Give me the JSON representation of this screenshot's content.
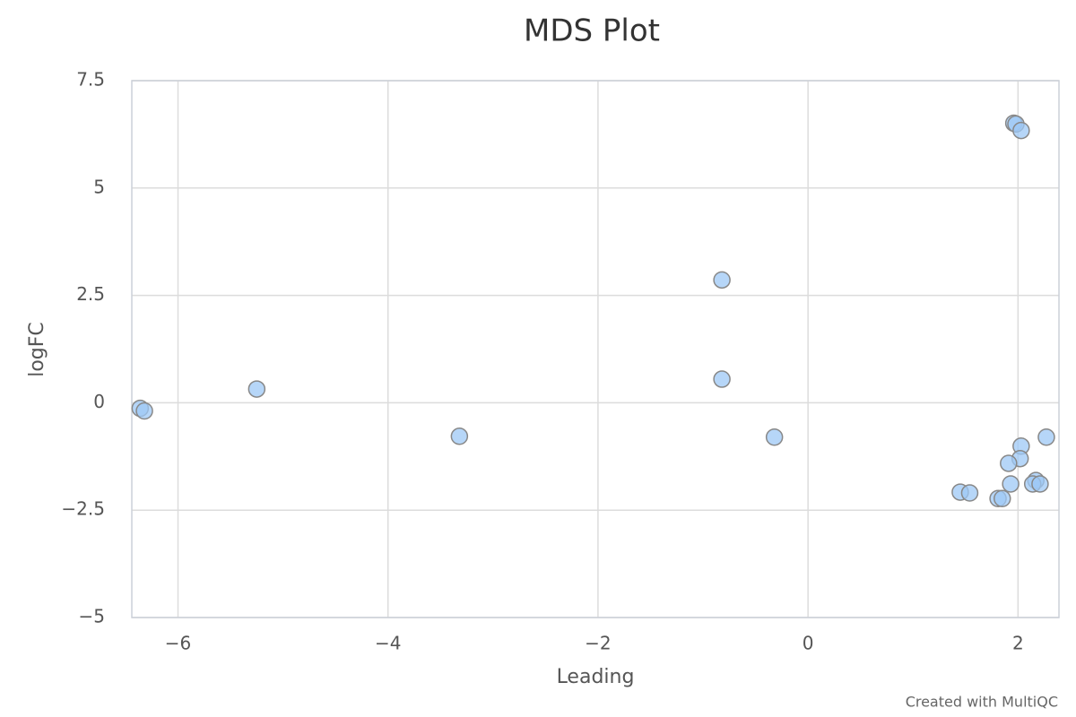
{
  "chart_data": {
    "type": "scatter",
    "title": "MDS Plot",
    "x_label": "Leading",
    "y_label": "logFC",
    "credit": "Created with MultiQC",
    "color": "#9ec8f5",
    "grid": true,
    "xlim": [
      -6.44,
      2.39
    ],
    "ylim": [
      -5,
      7.5
    ],
    "xticks": [
      {
        "value": -6,
        "label": "−6"
      },
      {
        "value": -4,
        "label": "−4"
      },
      {
        "value": -2,
        "label": "−2"
      },
      0,
      2
    ],
    "yticks": [
      {
        "value": -5,
        "label": "−5"
      },
      {
        "value": -2.5,
        "label": "−2.5"
      },
      0,
      2.5,
      5,
      7.5
    ],
    "x": [
      1.96,
      1.98,
      2.03,
      -0.82,
      -0.82,
      -5.25,
      -6.36,
      -6.32,
      -3.32,
      -0.32,
      2.27,
      2.03,
      2.02,
      1.91,
      2.17,
      2.14,
      2.21,
      1.93,
      1.45,
      1.54,
      1.81,
      1.85
    ],
    "values": [
      6.51,
      6.49,
      6.34,
      2.86,
      0.55,
      0.32,
      -0.13,
      -0.19,
      -0.78,
      -0.8,
      -0.8,
      -1.01,
      -1.3,
      -1.41,
      -1.81,
      -1.89,
      -1.89,
      -1.89,
      -2.08,
      -2.1,
      -2.23,
      -2.23
    ]
  }
}
